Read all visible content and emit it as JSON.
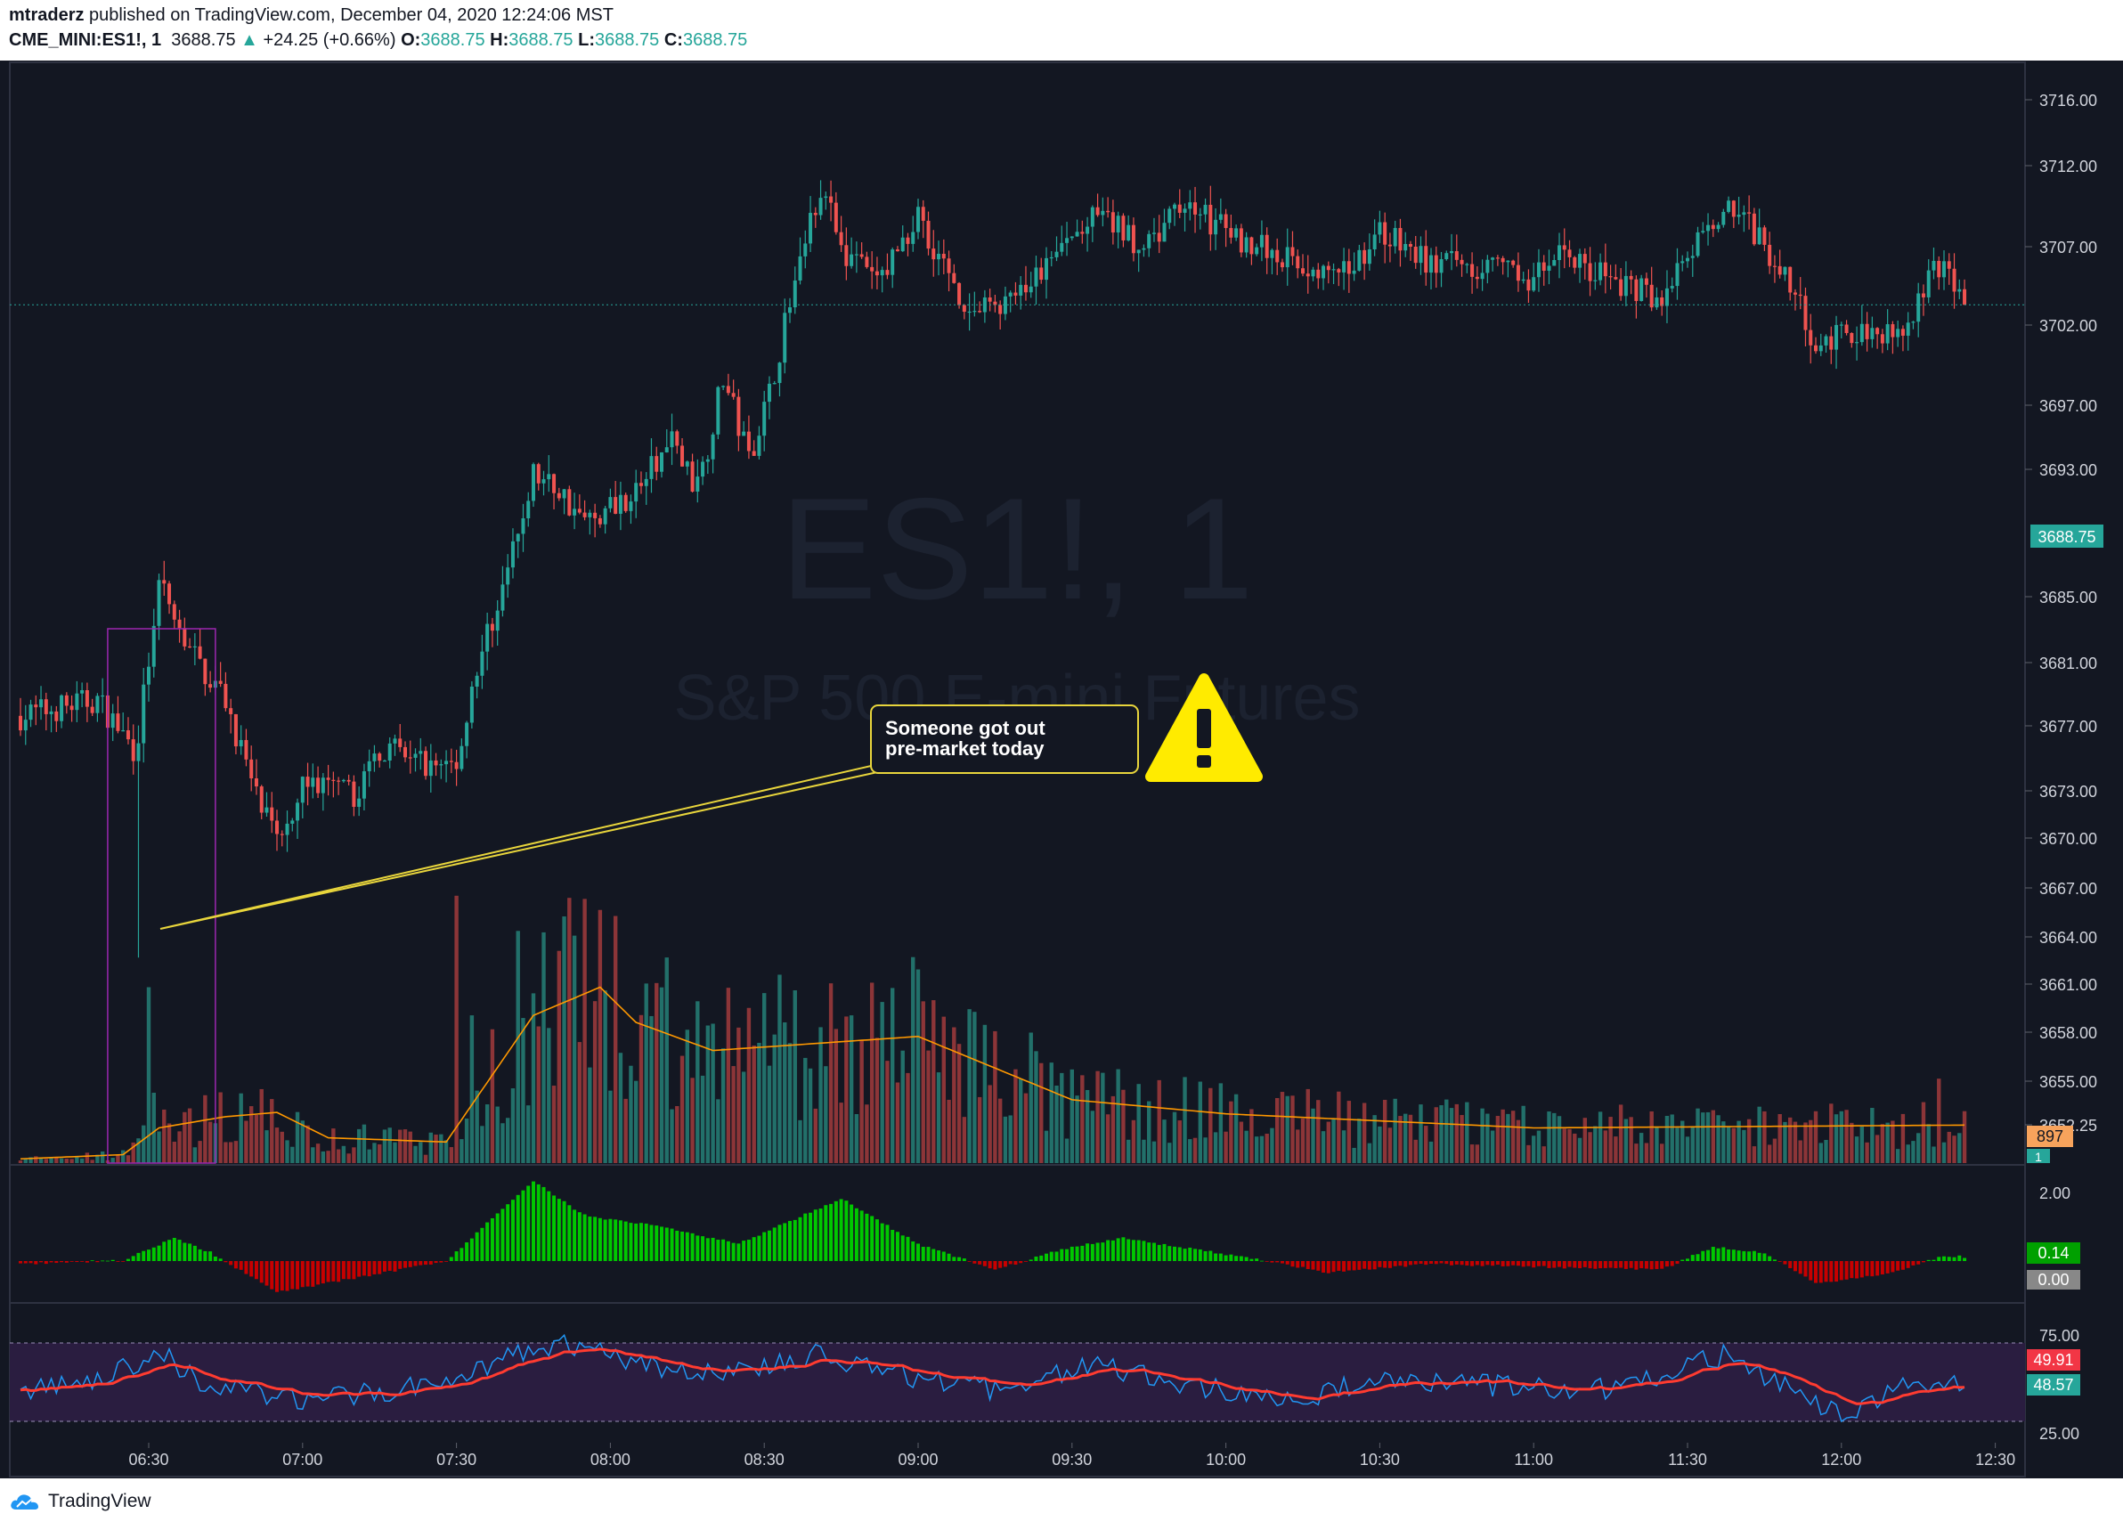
{
  "header": {
    "author": "mtraderz",
    "published": "published on TradingView.com, December 04, 2020 12:24:06 MST",
    "symbol": "CME_MINI:ES1!, 1",
    "last": "3688.75",
    "arrow": "▲",
    "change": "+24.25 (+0.66%)",
    "o_label": "O:",
    "o": "3688.75",
    "h_label": "H:",
    "h": "3688.75",
    "l_label": "L:",
    "l": "3688.75",
    "c_label": "C:",
    "c": "3688.75"
  },
  "watermark": {
    "symbol": "ES1!, 1",
    "name": "S&P 500 E-mini Futures"
  },
  "annotation": {
    "line1": "Someone got out",
    "line2": "pre-market today",
    "icon": "warning-icon"
  },
  "price_axis": {
    "ticks": [
      "3716.00",
      "3712.00",
      "3707.00",
      "3702.00",
      "3697.00",
      "3693.00",
      "3685.00",
      "3681.00",
      "3677.00",
      "3673.00",
      "3670.00",
      "3667.00",
      "3664.00",
      "3661.00",
      "3658.00",
      "3655.00",
      "3652.25"
    ],
    "last_price_badge": "3688.75",
    "volume_badge": "897"
  },
  "osc_axis": {
    "ticks": [
      "2.00"
    ],
    "value_badge": "0.14",
    "zero_badge": "0.00",
    "small_badge": "1"
  },
  "rsi_axis": {
    "ticks": [
      "75.00",
      "25.00"
    ],
    "badge_red": "49.91",
    "badge_teal": "48.57"
  },
  "time_axis": {
    "ticks": [
      "06:30",
      "07:00",
      "07:30",
      "08:00",
      "08:30",
      "09:00",
      "09:30",
      "10:00",
      "10:30",
      "11:00",
      "11:30",
      "12:00",
      "12:30"
    ]
  },
  "footer": {
    "brand": "TradingView"
  },
  "colors": {
    "background": "#131722",
    "up": "#26a69a",
    "down": "#ef5350",
    "vol_up": "#22706a",
    "vol_down": "#8c3538",
    "vol_ma": "#ff9800",
    "osc_up": "#00c800",
    "osc_down": "#c80000",
    "rsi_line": "#2196f3",
    "rsi_ma": "#ff3b30",
    "rsi_band": "#2a1d40",
    "annotation": "#e8d53c",
    "highlight_box": "#9c27b0"
  },
  "chart_data": {
    "type": "candlestick",
    "interval": "1 minute",
    "x_range": [
      "06:05",
      "12:24"
    ],
    "y_range": [
      3650,
      3719
    ],
    "price_anchors": [
      {
        "time": "06:05",
        "price": 3676.0
      },
      {
        "time": "06:20",
        "price": 3676.5
      },
      {
        "time": "06:27",
        "price": 3675.0
      },
      {
        "time": "06:28",
        "price": 3675.5
      },
      {
        "time": "06:32",
        "price": 3680.0
      },
      {
        "time": "06:38",
        "price": 3678.0
      },
      {
        "time": "06:45",
        "price": 3676.5
      },
      {
        "time": "06:51",
        "price": 3673.5
      },
      {
        "time": "06:55",
        "price": 3672.0
      },
      {
        "time": "07:00",
        "price": 3674.0
      },
      {
        "time": "07:10",
        "price": 3673.5
      },
      {
        "time": "07:15",
        "price": 3675.0
      },
      {
        "time": "07:25",
        "price": 3674.5
      },
      {
        "time": "07:30",
        "price": 3674.5
      },
      {
        "time": "07:35",
        "price": 3678.0
      },
      {
        "time": "07:40",
        "price": 3680.5
      },
      {
        "time": "07:45",
        "price": 3683.5
      },
      {
        "time": "07:50",
        "price": 3683.0
      },
      {
        "time": "07:55",
        "price": 3682.0
      },
      {
        "time": "08:05",
        "price": 3683.0
      },
      {
        "time": "08:12",
        "price": 3684.5
      },
      {
        "time": "08:17",
        "price": 3683.0
      },
      {
        "time": "08:22",
        "price": 3686.5
      },
      {
        "time": "08:27",
        "price": 3684.0
      },
      {
        "time": "08:31",
        "price": 3686.0
      },
      {
        "time": "08:36",
        "price": 3689.5
      },
      {
        "time": "08:41",
        "price": 3692.5
      },
      {
        "time": "08:45",
        "price": 3690.5
      },
      {
        "time": "08:52",
        "price": 3689.5
      },
      {
        "time": "09:00",
        "price": 3691.5
      },
      {
        "time": "09:10",
        "price": 3688.5
      },
      {
        "time": "09:20",
        "price": 3689.0
      },
      {
        "time": "09:28",
        "price": 3690.5
      },
      {
        "time": "09:35",
        "price": 3691.5
      },
      {
        "time": "09:45",
        "price": 3690.5
      },
      {
        "time": "09:52",
        "price": 3692.0
      },
      {
        "time": "10:00",
        "price": 3691.0
      },
      {
        "time": "10:15",
        "price": 3690.0
      },
      {
        "time": "10:22",
        "price": 3689.5
      },
      {
        "time": "10:30",
        "price": 3691.0
      },
      {
        "time": "10:40",
        "price": 3690.0
      },
      {
        "time": "10:50",
        "price": 3690.0
      },
      {
        "time": "11:00",
        "price": 3689.5
      },
      {
        "time": "11:05",
        "price": 3690.5
      },
      {
        "time": "11:15",
        "price": 3689.5
      },
      {
        "time": "11:25",
        "price": 3689.0
      },
      {
        "time": "11:38",
        "price": 3692.0
      },
      {
        "time": "11:50",
        "price": 3689.5
      },
      {
        "time": "11:55",
        "price": 3687.5
      },
      {
        "time": "12:05",
        "price": 3688.0
      },
      {
        "time": "12:12",
        "price": 3688.0
      },
      {
        "time": "12:17",
        "price": 3689.5
      },
      {
        "time": "12:20",
        "price": 3690.0
      },
      {
        "time": "12:24",
        "price": 3688.75
      }
    ],
    "volume_ma_anchors": [
      {
        "time": "06:05",
        "value": 0.3
      },
      {
        "time": "06:25",
        "value": 0.6
      },
      {
        "time": "06:32",
        "value": 2.5
      },
      {
        "time": "06:45",
        "value": 3.3
      },
      {
        "time": "06:55",
        "value": 3.6
      },
      {
        "time": "07:05",
        "value": 1.8
      },
      {
        "time": "07:28",
        "value": 1.5
      },
      {
        "time": "07:45",
        "value": 10.5
      },
      {
        "time": "07:58",
        "value": 12.5
      },
      {
        "time": "08:05",
        "value": 10.0
      },
      {
        "time": "08:20",
        "value": 8.0
      },
      {
        "time": "08:40",
        "value": 8.5
      },
      {
        "time": "09:00",
        "value": 9.0
      },
      {
        "time": "09:30",
        "value": 4.5
      },
      {
        "time": "10:00",
        "value": 3.5
      },
      {
        "time": "11:00",
        "value": 2.5
      },
      {
        "time": "12:24",
        "value": 2.7
      }
    ],
    "volume_spikes": [
      {
        "time": "06:30",
        "value": 12.5
      },
      {
        "time": "06:31",
        "value": 5.0
      },
      {
        "time": "07:30",
        "value": 19.0
      },
      {
        "time": "07:33",
        "value": 10.5
      },
      {
        "time": "07:42",
        "value": 16.5
      },
      {
        "time": "08:17",
        "value": 11.5
      },
      {
        "time": "08:34",
        "value": 10.0
      },
      {
        "time": "08:47",
        "value": 10.5
      },
      {
        "time": "09:02",
        "value": 8.0
      },
      {
        "time": "12:19",
        "value": 6.0
      }
    ],
    "oscillator_anchors": [
      {
        "time": "06:05",
        "value": -0.1
      },
      {
        "time": "06:25",
        "value": 0.02
      },
      {
        "time": "06:35",
        "value": 0.8
      },
      {
        "time": "06:42",
        "value": 0.3
      },
      {
        "time": "06:55",
        "value": -1.1
      },
      {
        "time": "07:10",
        "value": -0.6
      },
      {
        "time": "07:28",
        "value": 0.0
      },
      {
        "time": "07:45",
        "value": 2.8
      },
      {
        "time": "07:55",
        "value": 1.6
      },
      {
        "time": "08:10",
        "value": 1.2
      },
      {
        "time": "08:25",
        "value": 0.6
      },
      {
        "time": "08:45",
        "value": 2.2
      },
      {
        "time": "09:00",
        "value": 0.6
      },
      {
        "time": "09:15",
        "value": -0.3
      },
      {
        "time": "09:30",
        "value": 0.5
      },
      {
        "time": "09:40",
        "value": 0.8
      },
      {
        "time": "10:05",
        "value": 0.1
      },
      {
        "time": "10:20",
        "value": -0.4
      },
      {
        "time": "10:40",
        "value": -0.1
      },
      {
        "time": "11:00",
        "value": -0.2
      },
      {
        "time": "11:25",
        "value": -0.3
      },
      {
        "time": "11:35",
        "value": 0.5
      },
      {
        "time": "11:45",
        "value": 0.3
      },
      {
        "time": "11:55",
        "value": -0.8
      },
      {
        "time": "12:10",
        "value": -0.4
      },
      {
        "time": "12:20",
        "value": 0.2
      },
      {
        "time": "12:24",
        "value": 0.14
      }
    ],
    "rsi_anchors": [
      {
        "time": "06:05",
        "value": 45
      },
      {
        "time": "06:20",
        "value": 50
      },
      {
        "time": "06:32",
        "value": 70
      },
      {
        "time": "06:40",
        "value": 50
      },
      {
        "time": "06:52",
        "value": 42
      },
      {
        "time": "07:00",
        "value": 38
      },
      {
        "time": "07:25",
        "value": 48
      },
      {
        "time": "07:35",
        "value": 60
      },
      {
        "time": "07:50",
        "value": 75
      },
      {
        "time": "08:05",
        "value": 62
      },
      {
        "time": "08:20",
        "value": 55
      },
      {
        "time": "08:40",
        "value": 68
      },
      {
        "time": "08:55",
        "value": 55
      },
      {
        "time": "09:15",
        "value": 45
      },
      {
        "time": "09:35",
        "value": 62
      },
      {
        "time": "09:50",
        "value": 48
      },
      {
        "time": "10:15",
        "value": 40
      },
      {
        "time": "10:30",
        "value": 52
      },
      {
        "time": "10:50",
        "value": 48
      },
      {
        "time": "11:15",
        "value": 46
      },
      {
        "time": "11:38",
        "value": 68
      },
      {
        "time": "11:55",
        "value": 35
      },
      {
        "time": "12:00",
        "value": 30
      },
      {
        "time": "12:15",
        "value": 50
      },
      {
        "time": "12:24",
        "value": 48.57
      }
    ],
    "rsi_ma_last": 49.91,
    "rsi_band": [
      25,
      75
    ],
    "marked_candle": {
      "time": "06:28",
      "low": 3668.5
    },
    "highlight_window": [
      "06:22",
      "06:43"
    ]
  }
}
